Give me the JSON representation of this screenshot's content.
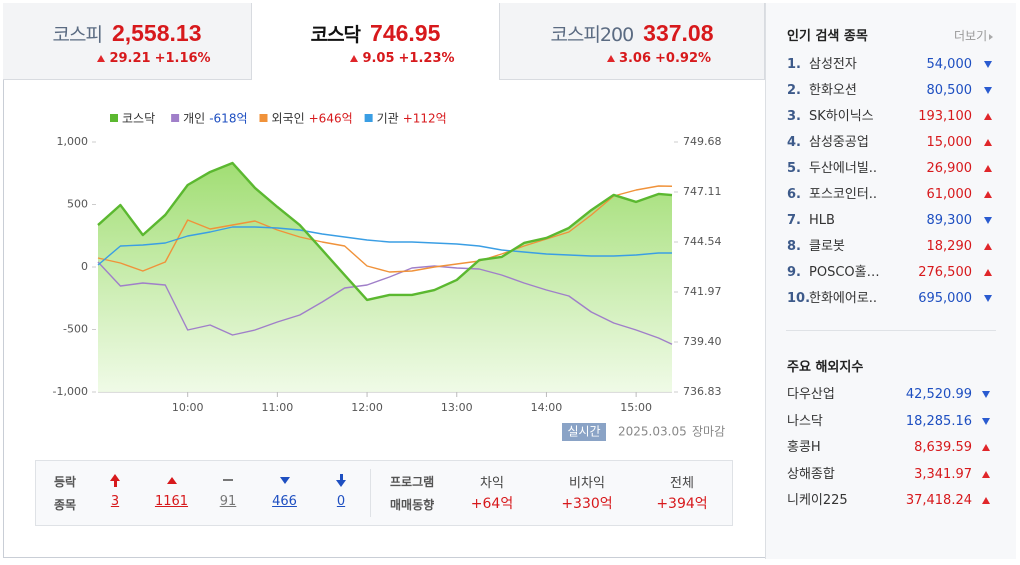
{
  "indices": [
    {
      "name": "코스피",
      "value": "2,558.13",
      "dir": "up",
      "change": "29.21",
      "rate": "+1.16%"
    },
    {
      "name": "코스닥",
      "value": "746.95",
      "dir": "up",
      "change": "9.05",
      "rate": "+1.23%",
      "active": true
    },
    {
      "name": "코스피200",
      "value": "337.08",
      "dir": "up",
      "change": "3.06",
      "rate": "+0.92%"
    }
  ],
  "chart_data": {
    "type": "line",
    "x": [
      "09:00",
      "09:15",
      "09:30",
      "09:45",
      "10:00",
      "10:15",
      "10:30",
      "10:45",
      "11:00",
      "11:15",
      "11:30",
      "11:45",
      "12:00",
      "12:15",
      "12:30",
      "12:45",
      "13:00",
      "13:15",
      "13:30",
      "13:45",
      "14:00",
      "14:15",
      "14:30",
      "14:45",
      "15:00",
      "15:15",
      "15:24"
    ],
    "xlim": [
      "09:00",
      "15:24"
    ],
    "xticks": [
      "10:00",
      "11:00",
      "12:00",
      "13:00",
      "14:00",
      "15:00"
    ],
    "ylim": [
      -1000,
      1000
    ],
    "yticks": [
      {
        "value": 1000,
        "label": "1,000"
      },
      500,
      0,
      -500,
      {
        "value": -1000,
        "label": "-1,000"
      }
    ],
    "y2lim": [
      736.83,
      749.68
    ],
    "y2ticks": [
      749.68,
      747.11,
      744.54,
      741.97,
      {
        "value": 739.4,
        "label": "739.40"
      },
      736.83
    ],
    "series": [
      {
        "name": "코스닥",
        "color": "#5bb830",
        "axis": "y2",
        "area": true,
        "values": [
          745.41,
          746.44,
          744.9,
          745.93,
          747.47,
          748.14,
          748.6,
          747.32,
          746.34,
          745.41,
          744.13,
          742.84,
          741.56,
          741.82,
          741.82,
          742.07,
          742.59,
          743.61,
          743.77,
          744.49,
          744.75,
          745.26,
          746.18,
          746.96,
          746.6,
          747.01,
          746.95
        ]
      },
      {
        "name": "개인",
        "color": "#a07fc9",
        "legend_label": "-618억",
        "values": [
          40,
          -152,
          -128,
          -144,
          -504,
          -464,
          -544,
          -504,
          -440,
          -384,
          -280,
          -168,
          -144,
          -80,
          -8,
          8,
          -8,
          -16,
          -64,
          -128,
          -184,
          -232,
          -360,
          -448,
          -504,
          -568,
          -618
        ]
      },
      {
        "name": "외국인",
        "color": "#f0923a",
        "legend_label": "+646억",
        "values": [
          72,
          32,
          -32,
          40,
          376,
          304,
          336,
          368,
          296,
          240,
          200,
          168,
          8,
          -40,
          -32,
          0,
          24,
          48,
          104,
          168,
          224,
          280,
          416,
          568,
          616,
          648,
          646
        ]
      },
      {
        "name": "기관",
        "color": "#3a9ee4",
        "legend_label": "+112억",
        "values": [
          16,
          168,
          176,
          192,
          248,
          280,
          320,
          320,
          312,
          296,
          264,
          240,
          216,
          200,
          200,
          192,
          184,
          168,
          136,
          120,
          104,
          96,
          88,
          88,
          96,
          112,
          112
        ]
      }
    ]
  },
  "chart_footer": {
    "button": "실시간",
    "date": "2025.03.05",
    "status": "장마감"
  },
  "breadth": {
    "label": [
      "등락",
      "종목"
    ],
    "items": [
      {
        "dir": "upper",
        "count": "3"
      },
      {
        "dir": "up",
        "count": "1161"
      },
      {
        "dir": "flat",
        "count": "91"
      },
      {
        "dir": "down",
        "count": "466"
      },
      {
        "dir": "lower",
        "count": "0"
      }
    ]
  },
  "program": {
    "label": [
      "프로그램",
      "매매동향"
    ],
    "items": [
      {
        "name": "차익",
        "value": "+64억"
      },
      {
        "name": "비차익",
        "value": "+330억"
      },
      {
        "name": "전체",
        "value": "+394억"
      }
    ]
  },
  "popular": {
    "title": "인기 검색 종목",
    "more": "더보기",
    "items": [
      {
        "rank": "1.",
        "name": "삼성전자",
        "price": "54,000",
        "dir": "down"
      },
      {
        "rank": "2.",
        "name": "한화오션",
        "price": "80,500",
        "dir": "down"
      },
      {
        "rank": "3.",
        "name": "SK하이닉스",
        "price": "193,100",
        "dir": "up"
      },
      {
        "rank": "4.",
        "name": "삼성중공업",
        "price": "15,000",
        "dir": "up"
      },
      {
        "rank": "5.",
        "name": "두산에너빌..",
        "price": "26,900",
        "dir": "up"
      },
      {
        "rank": "6.",
        "name": "포스코인터..",
        "price": "61,000",
        "dir": "up"
      },
      {
        "rank": "7.",
        "name": "HLB",
        "price": "89,300",
        "dir": "down"
      },
      {
        "rank": "8.",
        "name": "클로봇",
        "price": "18,290",
        "dir": "up"
      },
      {
        "rank": "9.",
        "name": "POSCO홀…",
        "price": "276,500",
        "dir": "up"
      },
      {
        "rank": "10.",
        "name": "한화에어로..",
        "price": "695,000",
        "dir": "down"
      }
    ]
  },
  "overseas": {
    "title": "주요 해외지수",
    "items": [
      {
        "name": "다우산업",
        "value": "42,520.99",
        "dir": "down"
      },
      {
        "name": "나스닥",
        "value": "18,285.16",
        "dir": "down"
      },
      {
        "name": "홍콩H",
        "value": "8,639.59",
        "dir": "up"
      },
      {
        "name": "상해종합",
        "value": "3,341.97",
        "dir": "up"
      },
      {
        "name": "니케이225",
        "value": "37,418.24",
        "dir": "up"
      }
    ]
  }
}
